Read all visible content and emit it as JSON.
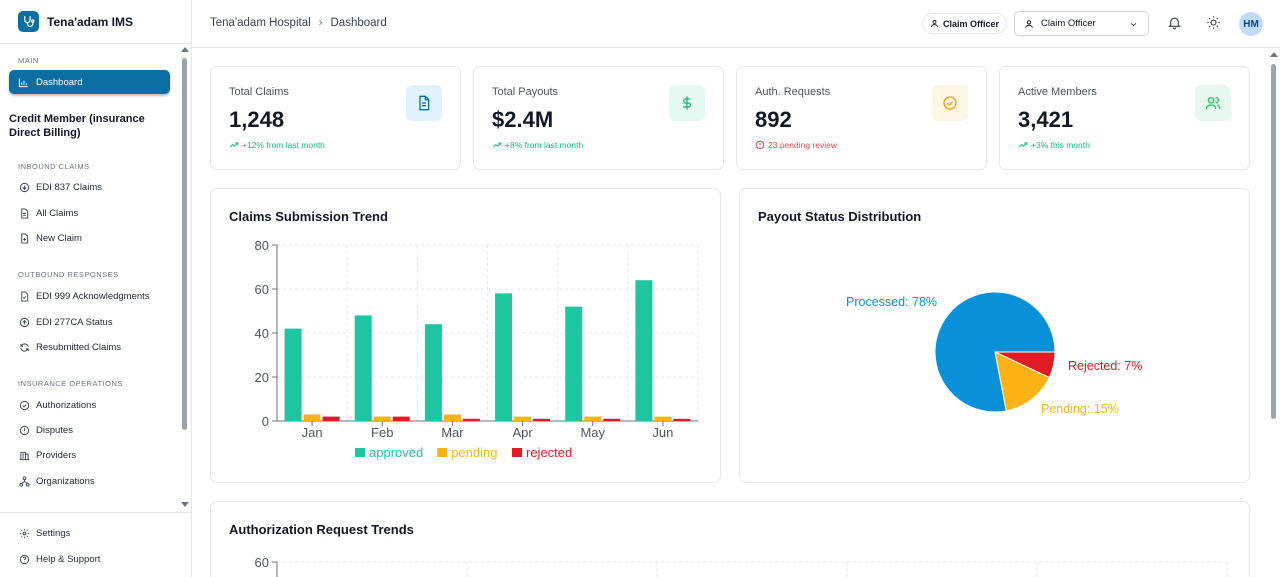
{
  "app": {
    "name": "Tena'adam IMS"
  },
  "sidebar": {
    "main_section": "MAIN",
    "dashboard_label": "Dashboard",
    "group_title": "Credit Member (insurance Direct Billing)",
    "sections": [
      {
        "title": "INBOUND CLAIMS",
        "items": [
          {
            "label": "EDI 837 Claims",
            "icon": "download-circle-icon"
          },
          {
            "label": "All Claims",
            "icon": "document-icon"
          },
          {
            "label": "New Claim",
            "icon": "document-plus-icon"
          }
        ]
      },
      {
        "title": "OUTBOUND RESPONSES",
        "items": [
          {
            "label": "EDI 999 Acknowledgments",
            "icon": "document-check-icon"
          },
          {
            "label": "EDI 277CA Status",
            "icon": "upload-circle-icon"
          },
          {
            "label": "Resubmitted Claims",
            "icon": "refresh-icon"
          }
        ]
      },
      {
        "title": "INSURANCE OPERATIONS",
        "items": [
          {
            "label": "Authorizations",
            "icon": "check-circle-icon"
          },
          {
            "label": "Disputes",
            "icon": "alert-circle-icon"
          },
          {
            "label": "Providers",
            "icon": "building-icon"
          },
          {
            "label": "Organizations",
            "icon": "network-icon"
          }
        ]
      }
    ],
    "bottom": [
      {
        "label": "Settings",
        "icon": "gear-icon"
      },
      {
        "label": "Help & Support",
        "icon": "help-circle-icon"
      }
    ]
  },
  "header": {
    "breadcrumb": [
      "Tena'adam Hospital",
      "Dashboard"
    ],
    "role_badge": "Claim Officer",
    "role_select_value": "Claim Officer",
    "avatar_initials": "HM"
  },
  "stats": [
    {
      "label": "Total Claims",
      "value": "1,248",
      "trend": "+12% from last month",
      "trend_type": "up",
      "icon": "document-icon",
      "icon_color": "#0b6fa4",
      "icon_bg": "#e0f2fe"
    },
    {
      "label": "Total Payouts",
      "value": "$2.4M",
      "trend": "+8% from last month",
      "trend_type": "up",
      "icon": "dollar-icon",
      "icon_color": "#10b981",
      "icon_bg": "#e6f8f2"
    },
    {
      "label": "Auth. Requests",
      "value": "892",
      "trend": "23 pending review",
      "trend_type": "alert",
      "icon": "check-circle-icon",
      "icon_color": "#f59e0b",
      "icon_bg": "#fef6e4"
    },
    {
      "label": "Active Members",
      "value": "3,421",
      "trend": "+3% this month",
      "trend_type": "up",
      "icon": "users-icon",
      "icon_color": "#22c55e",
      "icon_bg": "#e8f8ee"
    }
  ],
  "charts": {
    "claims_title": "Claims Submission Trend",
    "payout_title": "Payout Status Distribution",
    "auth_title": "Authorization Request Trends"
  },
  "colors": {
    "accent": "#0b6fa4",
    "approved": "#1dc6a0",
    "pending": "#fbb215",
    "rejected": "#e01b24",
    "processed": "#0891d8",
    "up": "#10b981",
    "alert": "#ef4444"
  },
  "chart_data": [
    {
      "type": "bar",
      "title": "Claims Submission Trend",
      "categories": [
        "Jan",
        "Feb",
        "Mar",
        "Apr",
        "May",
        "Jun"
      ],
      "series": [
        {
          "name": "approved",
          "values": [
            42,
            48,
            44,
            58,
            52,
            64
          ],
          "color": "#1dc6a0"
        },
        {
          "name": "pending",
          "values": [
            3,
            2,
            3,
            2,
            2,
            2
          ],
          "color": "#fbb215"
        },
        {
          "name": "rejected",
          "values": [
            2,
            2,
            1,
            1,
            1,
            1
          ],
          "color": "#e01b24"
        }
      ],
      "yticks": [
        0,
        20,
        40,
        60,
        80
      ],
      "ylim": [
        0,
        80
      ],
      "grid": true,
      "legend": "bottom"
    },
    {
      "type": "pie",
      "title": "Payout Status Distribution",
      "slices": [
        {
          "label": "Processed: 78%",
          "value": 78,
          "color": "#0891d8"
        },
        {
          "label": "Pending: 15%",
          "value": 15,
          "color": "#fbb215"
        },
        {
          "label": "Rejected: 7%",
          "value": 7,
          "color": "#e01b24"
        }
      ]
    },
    {
      "type": "line",
      "title": "Authorization Request Trends",
      "yticks": [
        60
      ],
      "grid": true
    }
  ]
}
